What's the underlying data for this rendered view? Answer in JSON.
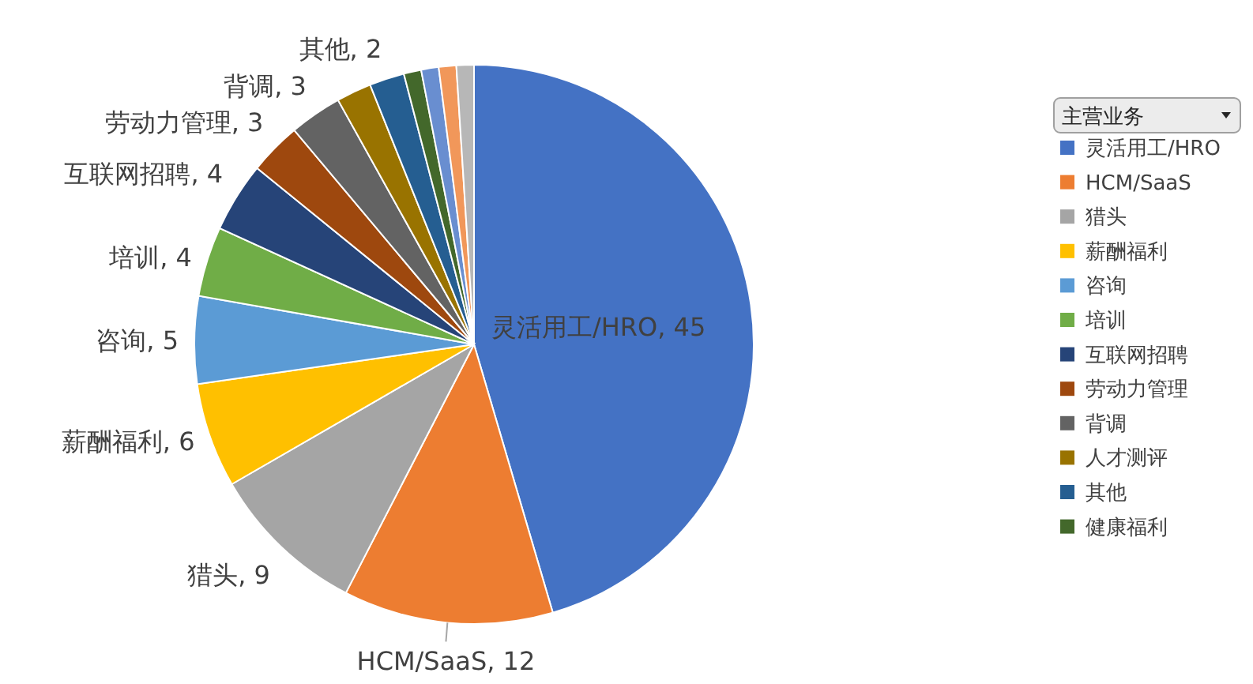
{
  "chart_data": {
    "type": "pie",
    "legend_title": "主营业务",
    "legend": "right",
    "categories": [
      "灵活用工/HRO",
      "HCM/SaaS",
      "猎头",
      "薪酬福利",
      "咨询",
      "培训",
      "互联网招聘",
      "劳动力管理",
      "背调",
      "人才测评",
      "其他",
      "健康福利",
      null,
      null,
      null
    ],
    "values": [
      45,
      12,
      9,
      6,
      5,
      4,
      4,
      3,
      3,
      2,
      2,
      1,
      1,
      1,
      1
    ],
    "value_labels": [
      "灵活用工/HRO, 45",
      "HCM/SaaS, 12",
      "猎头, 9",
      "薪酬福利, 6",
      "咨询, 5",
      "培训, 4",
      "互联网招聘, 4",
      "劳动力管理, 3",
      "背调, 3",
      null,
      "其他, 2",
      null,
      null,
      null,
      null
    ],
    "colors": [
      "#4472c4",
      "#ed7d31",
      "#a5a5a5",
      "#ffc000",
      "#5b9bd5",
      "#70ad47",
      "#264478",
      "#9e480e",
      "#636363",
      "#997300",
      "#255e91",
      "#43682b",
      "#698ed0",
      "#f1975a",
      "#b7b7b7"
    ]
  }
}
